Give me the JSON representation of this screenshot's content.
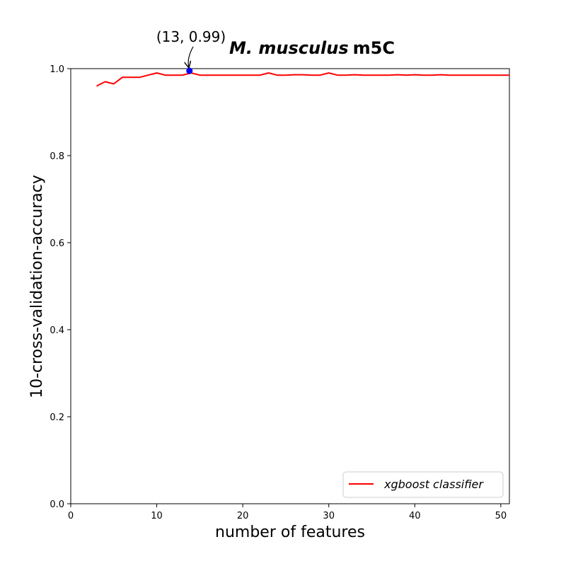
{
  "chart_data": {
    "type": "line",
    "title": {
      "italic": "M. musculus",
      "normal": "m5C"
    },
    "xlabel": "number of features",
    "ylabel": "10-cross-validation-accuracy",
    "xlim": [
      0,
      51
    ],
    "ylim": [
      0.0,
      1.0
    ],
    "xticks": [
      "0",
      "10",
      "20",
      "30",
      "40",
      "50"
    ],
    "yticks": [
      "0.0",
      "0.2",
      "0.4",
      "0.6",
      "0.8",
      "1.0"
    ],
    "grid": false,
    "legend_position": "lower-right",
    "series": [
      {
        "name": "xgboost classifier",
        "color": "#ff0000",
        "x": [
          3,
          4,
          5,
          6,
          7,
          8,
          9,
          10,
          11,
          12,
          13,
          14,
          15,
          16,
          17,
          18,
          19,
          20,
          21,
          22,
          23,
          24,
          25,
          26,
          27,
          28,
          29,
          30,
          31,
          32,
          33,
          34,
          35,
          36,
          37,
          38,
          39,
          40,
          41,
          42,
          43,
          44,
          45,
          46,
          47,
          48,
          49,
          50,
          51
        ],
        "y": [
          0.96,
          0.97,
          0.965,
          0.98,
          0.98,
          0.98,
          0.985,
          0.99,
          0.985,
          0.985,
          0.985,
          0.99,
          0.985,
          0.985,
          0.985,
          0.985,
          0.985,
          0.985,
          0.985,
          0.985,
          0.99,
          0.985,
          0.985,
          0.986,
          0.986,
          0.985,
          0.985,
          0.99,
          0.985,
          0.985,
          0.986,
          0.985,
          0.985,
          0.985,
          0.985,
          0.986,
          0.985,
          0.986,
          0.985,
          0.985,
          0.986,
          0.985,
          0.985,
          0.985,
          0.985,
          0.985,
          0.985,
          0.985,
          0.985
        ]
      }
    ],
    "highlight": {
      "x": 13.8,
      "y": 0.995,
      "color": "#0000ff",
      "label": "(13, 0.99)"
    }
  }
}
